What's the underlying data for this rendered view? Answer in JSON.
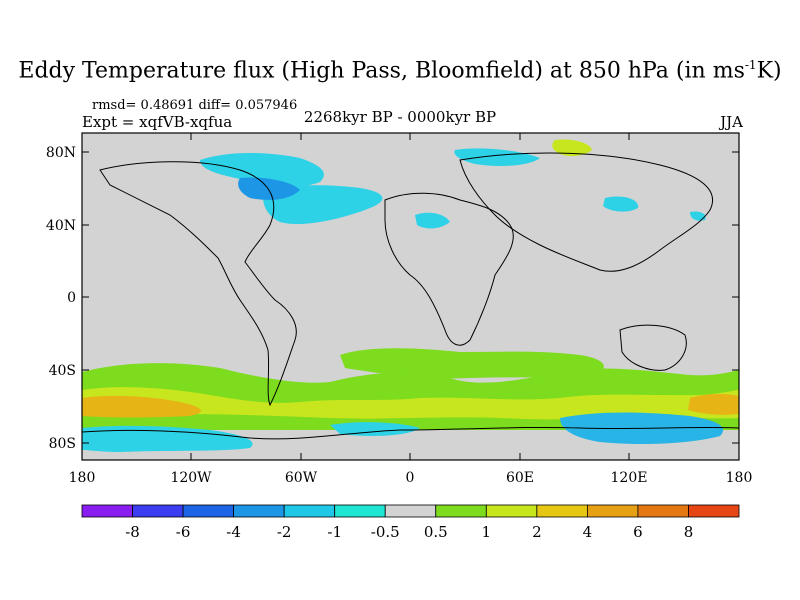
{
  "header": {
    "title_main": "Eddy Temperature flux (High Pass, Bloomfield) at 850 hPa (in ms",
    "title_sup": "-1",
    "title_end": "K)",
    "stats": "rmsd= 0.48691 diff= 0.057946",
    "expt": "Expt = xqfVB-xqfua",
    "period": "2268kyr BP - 0000kyr BP",
    "season": "JJA"
  },
  "axes": {
    "y_ticks": [
      "80N",
      "40N",
      "0",
      "40S",
      "80S"
    ],
    "x_ticks": [
      "180",
      "120W",
      "60W",
      "0",
      "60E",
      "120E",
      "180"
    ]
  },
  "colorbar": {
    "labels": [
      "-8",
      "-6",
      "-4",
      "-2",
      "-1",
      "-0.5",
      "0.5",
      "1",
      "2",
      "4",
      "6",
      "8"
    ],
    "colors": [
      "#8a1ef0",
      "#3c3cf0",
      "#1e64e6",
      "#1e96e6",
      "#1ec8e6",
      "#1ee6d2",
      "#d3d3d3",
      "#7ddc1e",
      "#c8e61e",
      "#e6c814",
      "#e6a014",
      "#e67814",
      "#e64614"
    ]
  },
  "colors": {
    "land_bg": "#d3d3d3",
    "cyan": "#2ed2e6",
    "blue": "#28b4e6",
    "green": "#7ddc1e",
    "yellow": "#c8e61e",
    "orange": "#e6b414"
  }
}
